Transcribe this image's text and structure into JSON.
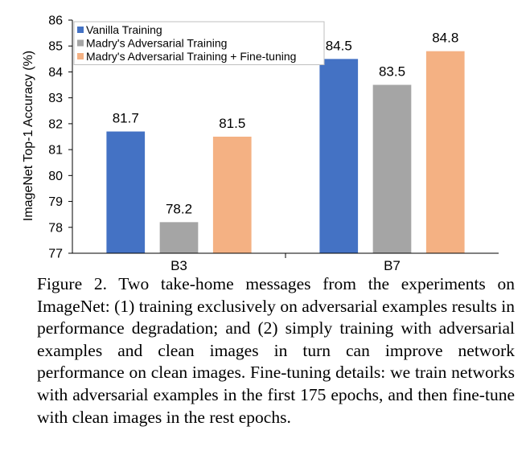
{
  "chart_data": {
    "type": "bar",
    "ylabel": "ImageNet Top-1 Accuracy (%)",
    "xlabel": "",
    "ylim": [
      77,
      86
    ],
    "yticks": [
      "77",
      "78",
      "79",
      "80",
      "81",
      "82",
      "83",
      "84",
      "85",
      "86"
    ],
    "categories": [
      "B3",
      "B7"
    ],
    "legend_position": "top-left",
    "grid": false,
    "series": [
      {
        "name": "Vanilla Training",
        "color": "#4472C4",
        "values": [
          81.7,
          84.5
        ],
        "labels": [
          "81.7",
          "84.5"
        ]
      },
      {
        "name": "Madry's Adversarial Training",
        "color": "#A5A5A5",
        "values": [
          78.2,
          83.5
        ],
        "labels": [
          "78.2",
          "83.5"
        ]
      },
      {
        "name": "Madry's Adversarial Training + Fine-tuning",
        "color": "#F4B183",
        "values": [
          81.5,
          84.8
        ],
        "labels": [
          "81.5",
          "84.8"
        ]
      }
    ]
  },
  "caption": "Figure 2. Two take-home messages from the experiments on ImageNet: (1) training exclusively on adversarial examples results in performance degradation; and (2) simply training with adversarial examples and clean images in turn can improve network performance on clean images. Fine-tuning details: we train networks with adversarial examples in the first 175 epochs, and then fine-tune with clean images in the rest epochs."
}
